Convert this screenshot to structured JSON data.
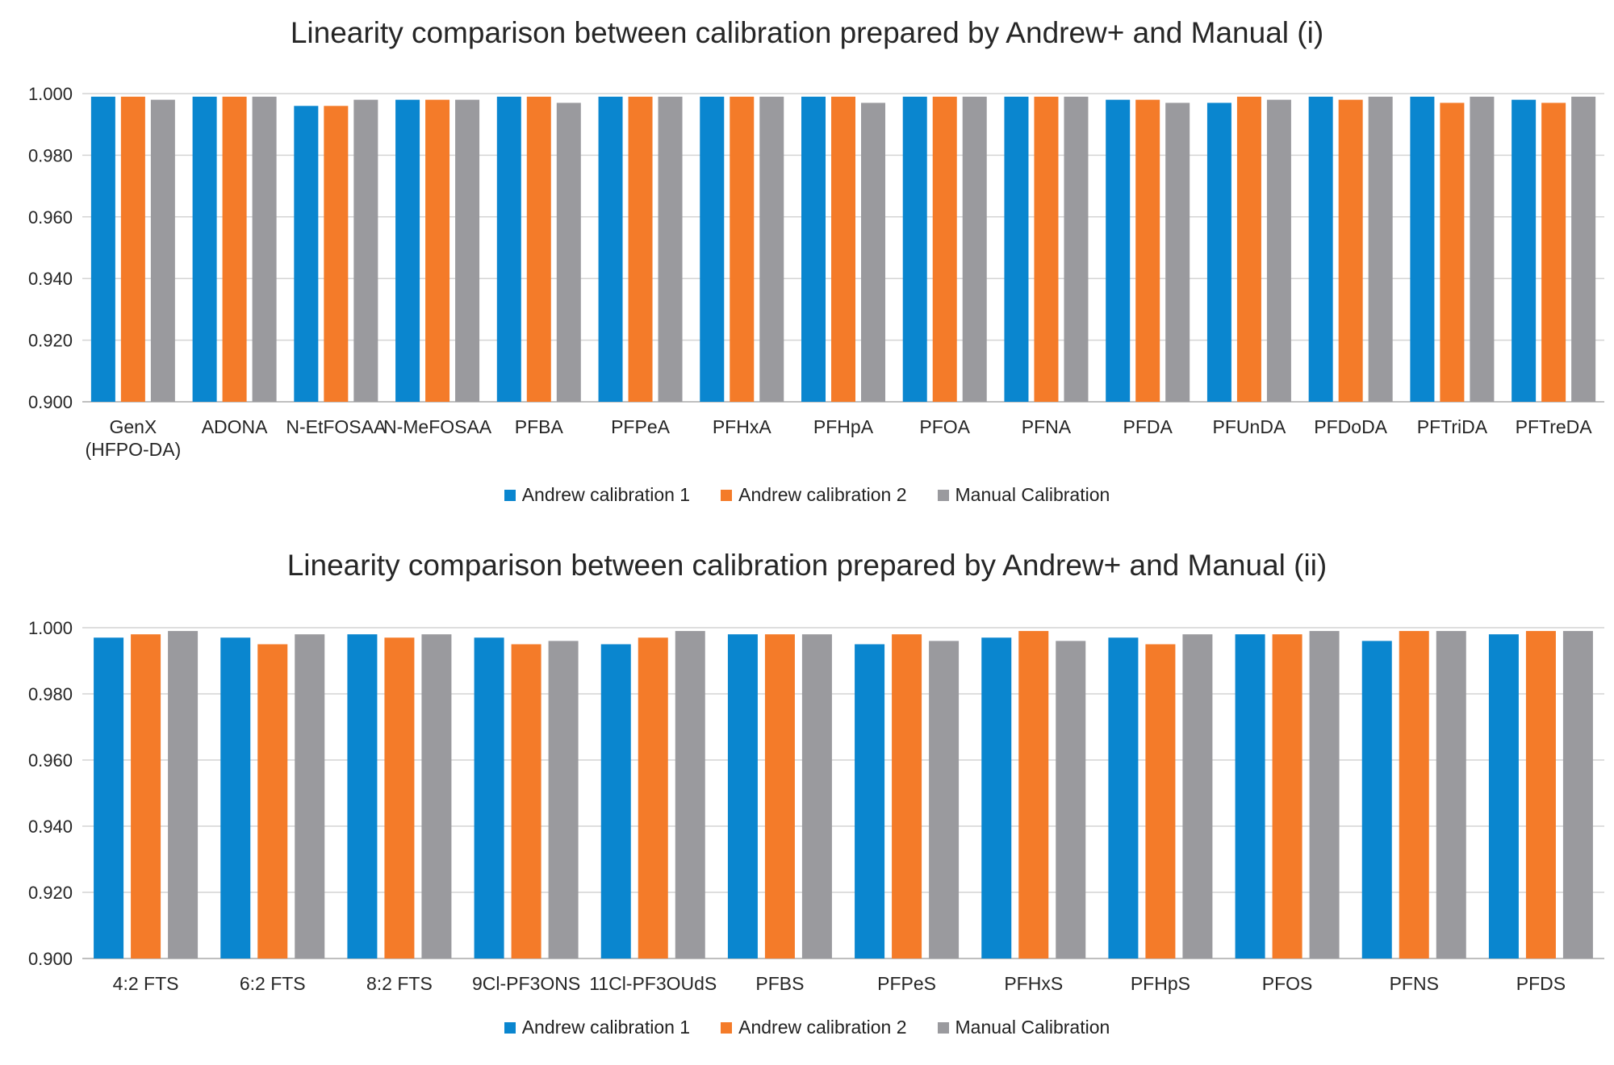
{
  "colors": {
    "andrew1": "#0a86cf",
    "andrew2": "#f47b29",
    "manual": "#9a9a9e",
    "grid": "#d4d4d4",
    "axis": "#bfbfbf",
    "text": "#262626"
  },
  "chart_data": [
    {
      "type": "bar",
      "title": "Linearity comparison between calibration prepared by Andrew+ and Manual (i)",
      "categories": [
        [
          "GenX",
          "(HFPO-DA)"
        ],
        [
          "ADONA"
        ],
        [
          "N-EtFOSAA"
        ],
        [
          "N-MeFOSAA"
        ],
        [
          "PFBA"
        ],
        [
          "PFPeA"
        ],
        [
          "PFHxA"
        ],
        [
          "PFHpA"
        ],
        [
          "PFOA"
        ],
        [
          "PFNA"
        ],
        [
          "PFDA"
        ],
        [
          "PFUnDA"
        ],
        [
          "PFDoDA"
        ],
        [
          "PFTriDA"
        ],
        [
          "PFTreDA"
        ]
      ],
      "series": [
        {
          "name": "Andrew calibration 1",
          "key": "andrew1",
          "values": [
            0.999,
            0.999,
            0.996,
            0.998,
            0.999,
            0.999,
            0.999,
            0.999,
            0.999,
            0.999,
            0.998,
            0.997,
            0.999,
            0.999,
            0.998
          ]
        },
        {
          "name": "Andrew calibration 2",
          "key": "andrew2",
          "values": [
            0.999,
            0.999,
            0.996,
            0.998,
            0.999,
            0.999,
            0.999,
            0.999,
            0.999,
            0.999,
            0.998,
            0.999,
            0.998,
            0.997,
            0.997
          ]
        },
        {
          "name": "Manual Calibration",
          "key": "manual",
          "values": [
            0.998,
            0.999,
            0.998,
            0.998,
            0.997,
            0.999,
            0.999,
            0.997,
            0.999,
            0.999,
            0.997,
            0.998,
            0.999,
            0.999,
            0.999
          ]
        }
      ],
      "yticks": [
        "0.900",
        "0.920",
        "0.940",
        "0.960",
        "0.980",
        "1.000"
      ],
      "ylim": [
        0.9,
        1.0
      ],
      "grid": true,
      "legend": "bottom-center"
    },
    {
      "type": "bar",
      "title": "Linearity comparison between calibration prepared by Andrew+ and Manual (ii)",
      "categories": [
        [
          "4:2 FTS"
        ],
        [
          "6:2 FTS"
        ],
        [
          "8:2 FTS"
        ],
        [
          "9Cl-PF3ONS"
        ],
        [
          "11Cl-PF3OUdS"
        ],
        [
          "PFBS"
        ],
        [
          "PFPeS"
        ],
        [
          "PFHxS"
        ],
        [
          "PFHpS"
        ],
        [
          "PFOS"
        ],
        [
          "PFNS"
        ],
        [
          "PFDS"
        ]
      ],
      "series": [
        {
          "name": "Andrew calibration 1",
          "key": "andrew1",
          "values": [
            0.997,
            0.997,
            0.998,
            0.997,
            0.995,
            0.998,
            0.995,
            0.997,
            0.997,
            0.998,
            0.996,
            0.998
          ]
        },
        {
          "name": "Andrew calibration 2",
          "key": "andrew2",
          "values": [
            0.998,
            0.995,
            0.997,
            0.995,
            0.997,
            0.998,
            0.998,
            0.999,
            0.995,
            0.998,
            0.999,
            0.999
          ]
        },
        {
          "name": "Manual Calibration",
          "key": "manual",
          "values": [
            0.999,
            0.998,
            0.998,
            0.996,
            0.999,
            0.998,
            0.996,
            0.996,
            0.998,
            0.999,
            0.999,
            0.999
          ]
        }
      ],
      "yticks": [
        "0.900",
        "0.920",
        "0.940",
        "0.960",
        "0.980",
        "1.000"
      ],
      "ylim": [
        0.9,
        1.0
      ],
      "grid": true,
      "legend": "bottom-center"
    }
  ]
}
